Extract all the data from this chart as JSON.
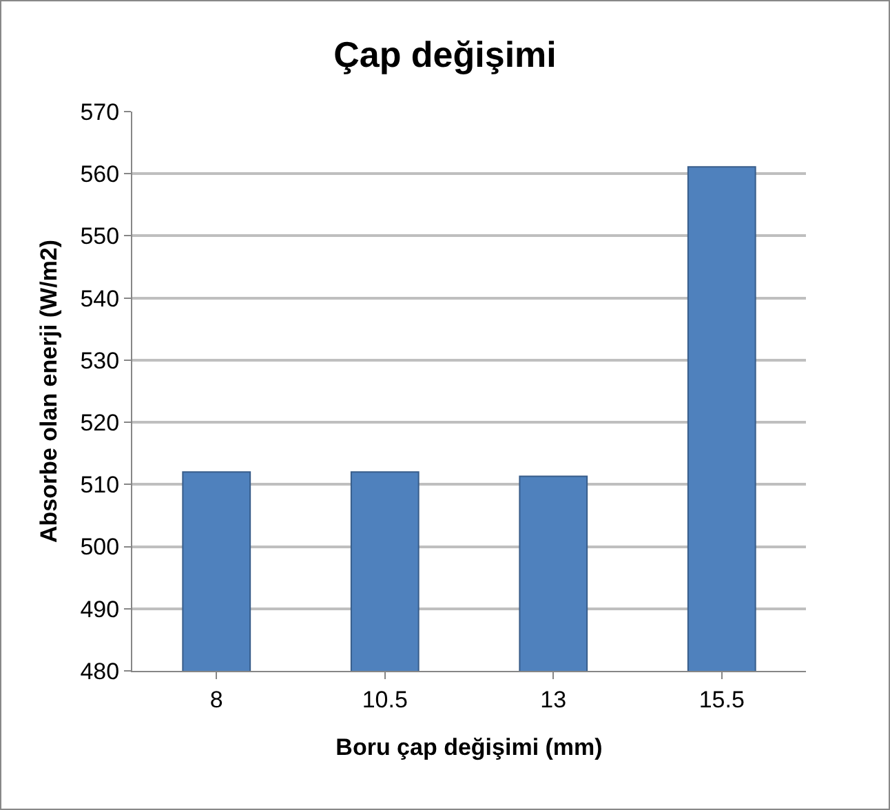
{
  "chart_data": {
    "type": "bar",
    "title": "Çap değişimi",
    "xlabel": "Boru çap değişimi (mm)",
    "ylabel": "Absorbe olan enerji (W/m2)",
    "categories": [
      "8",
      "10.5",
      "13",
      "15.5"
    ],
    "values": [
      512,
      512,
      511.3,
      561.1
    ],
    "color": "#4f81bd",
    "ylim": [
      480,
      570
    ],
    "yticks": [
      480,
      490,
      500,
      510,
      520,
      530,
      540,
      550,
      560,
      570
    ],
    "grid": "y"
  }
}
